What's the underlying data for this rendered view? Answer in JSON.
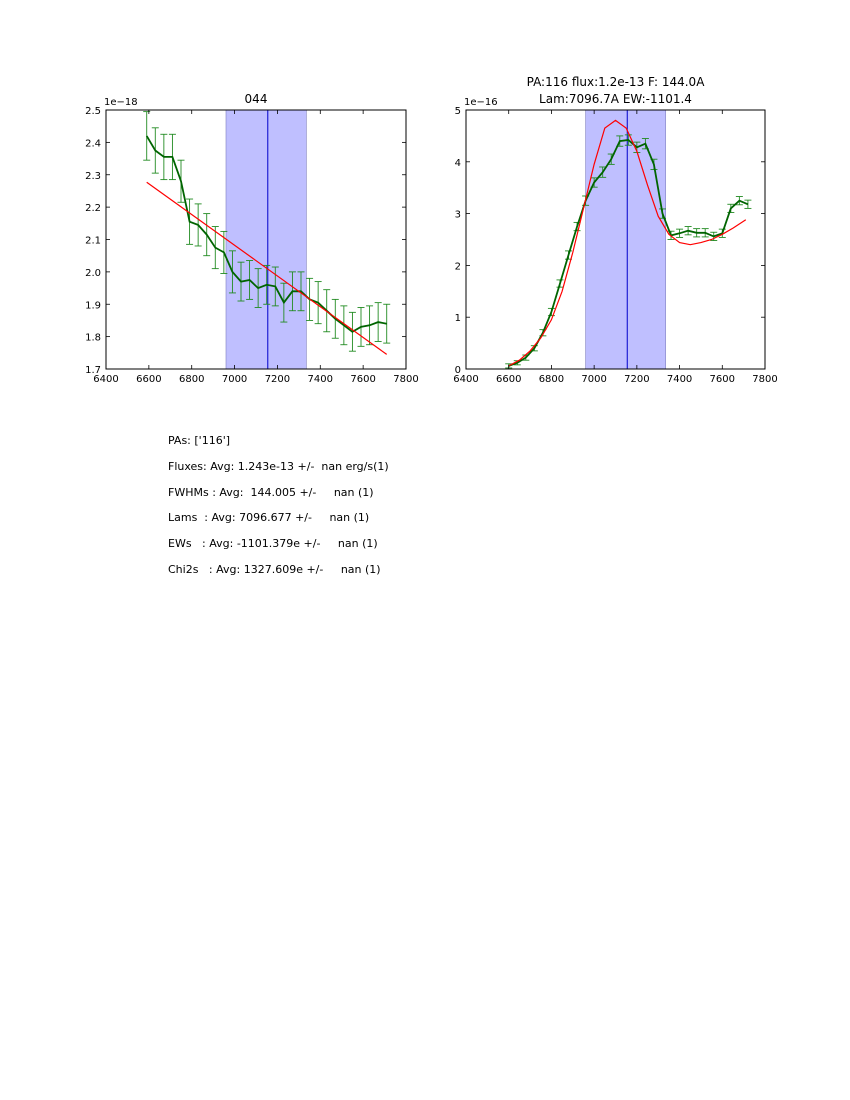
{
  "chart_data": [
    {
      "type": "line",
      "title": "044",
      "scale_label": "1e−18",
      "xlim": [
        6400,
        7800
      ],
      "ylim": [
        1.7,
        2.5
      ],
      "xticks": [
        6400,
        6600,
        6800,
        7000,
        7200,
        7400,
        7600,
        7800
      ],
      "xtick_labels": [
        "6400",
        "6600",
        "6800",
        "7000",
        "7200",
        "7400",
        "7600",
        "7800"
      ],
      "yticks": [
        1.7,
        1.8,
        1.9,
        2.0,
        2.1,
        2.2,
        2.3,
        2.4,
        2.5
      ],
      "ytick_labels": [
        "1.7",
        "1.8",
        "1.9",
        "2.0",
        "2.1",
        "2.2",
        "2.3",
        "2.4",
        "2.5"
      ],
      "shaded_region": [
        6960,
        7335
      ],
      "marker_line_x": 7155,
      "series": [
        {
          "name": "data",
          "color": "#006400",
          "x": [
            6590,
            6630,
            6670,
            6710,
            6750,
            6790,
            6830,
            6870,
            6910,
            6950,
            6990,
            7030,
            7070,
            7110,
            7150,
            7190,
            7230,
            7270,
            7310,
            7350,
            7390,
            7430,
            7470,
            7510,
            7550,
            7590,
            7630,
            7670,
            7710
          ],
          "y": [
            2.42,
            2.375,
            2.355,
            2.355,
            2.28,
            2.155,
            2.145,
            2.115,
            2.075,
            2.06,
            2.0,
            1.97,
            1.975,
            1.95,
            1.96,
            1.955,
            1.905,
            1.94,
            1.94,
            1.915,
            1.905,
            1.88,
            1.855,
            1.835,
            1.815,
            1.83,
            1.835,
            1.845,
            1.84
          ],
          "err": [
            0.075,
            0.07,
            0.07,
            0.07,
            0.065,
            0.07,
            0.065,
            0.065,
            0.065,
            0.065,
            0.065,
            0.06,
            0.06,
            0.06,
            0.06,
            0.06,
            0.06,
            0.06,
            0.06,
            0.065,
            0.065,
            0.065,
            0.06,
            0.06,
            0.06,
            0.06,
            0.06,
            0.06,
            0.06
          ]
        },
        {
          "name": "fit",
          "color": "#ff0000",
          "x": [
            6590,
            7710
          ],
          "y": [
            2.277,
            1.745
          ]
        }
      ]
    },
    {
      "type": "line",
      "title": "PA:116 flux:1.2e-13 F: 144.0A",
      "title_line2": "Lam:7096.7A EW:-1101.4",
      "scale_label": "1e−16",
      "xlim": [
        6400,
        7800
      ],
      "ylim": [
        0,
        5
      ],
      "xticks": [
        6400,
        6600,
        6800,
        7000,
        7200,
        7400,
        7600,
        7800
      ],
      "xtick_labels": [
        "6400",
        "6600",
        "6800",
        "7000",
        "7200",
        "7400",
        "7600",
        "7800"
      ],
      "yticks": [
        0,
        1,
        2,
        3,
        4,
        5
      ],
      "ytick_labels": [
        "0",
        "1",
        "2",
        "3",
        "4",
        "5"
      ],
      "shaded_region": [
        6960,
        7335
      ],
      "marker_line_x": 7155,
      "series": [
        {
          "name": "data",
          "color": "#006400",
          "x": [
            6600,
            6640,
            6680,
            6720,
            6760,
            6800,
            6840,
            6880,
            6920,
            6960,
            7000,
            7040,
            7080,
            7120,
            7160,
            7200,
            7240,
            7280,
            7320,
            7360,
            7400,
            7440,
            7480,
            7520,
            7560,
            7600,
            7640,
            7680,
            7720
          ],
          "y": [
            0.06,
            0.12,
            0.22,
            0.4,
            0.7,
            1.1,
            1.65,
            2.2,
            2.75,
            3.25,
            3.6,
            3.8,
            4.05,
            4.4,
            4.42,
            4.28,
            4.35,
            3.95,
            3.0,
            2.58,
            2.62,
            2.67,
            2.63,
            2.63,
            2.56,
            2.62,
            3.1,
            3.25,
            3.18
          ],
          "err": [
            0.04,
            0.04,
            0.05,
            0.05,
            0.06,
            0.07,
            0.07,
            0.08,
            0.08,
            0.09,
            0.09,
            0.1,
            0.1,
            0.1,
            0.1,
            0.1,
            0.1,
            0.1,
            0.09,
            0.08,
            0.08,
            0.08,
            0.08,
            0.08,
            0.08,
            0.08,
            0.08,
            0.08,
            0.08
          ]
        },
        {
          "name": "fit",
          "color": "#ff0000",
          "x": [
            6600,
            6650,
            6700,
            6750,
            6800,
            6850,
            6900,
            6950,
            7000,
            7050,
            7100,
            7150,
            7200,
            7250,
            7300,
            7350,
            7400,
            7450,
            7500,
            7550,
            7600,
            7650,
            7710
          ],
          "y": [
            0.06,
            0.17,
            0.35,
            0.6,
            0.95,
            1.5,
            2.25,
            3.1,
            3.95,
            4.65,
            4.8,
            4.65,
            4.2,
            3.55,
            2.95,
            2.6,
            2.44,
            2.4,
            2.44,
            2.5,
            2.6,
            2.72,
            2.88
          ]
        }
      ]
    }
  ],
  "stats": {
    "pas": "PAs: ['116']",
    "fluxes": "Fluxes: Avg: 1.243e-13 +/-  nan erg/s(1)",
    "fwhms": "FWHMs : Avg:  144.005 +/-     nan (1)",
    "lams": "Lams  : Avg: 7096.677 +/-     nan (1)",
    "ews": "EWs   : Avg: -1101.379e +/-     nan (1)",
    "chi2s": "Chi2s   : Avg: 1327.609e +/-     nan (1)"
  },
  "colors": {
    "data": "#006400",
    "fit": "#ff0000",
    "shade": "#bfbfff",
    "marker": "#0000cc"
  }
}
